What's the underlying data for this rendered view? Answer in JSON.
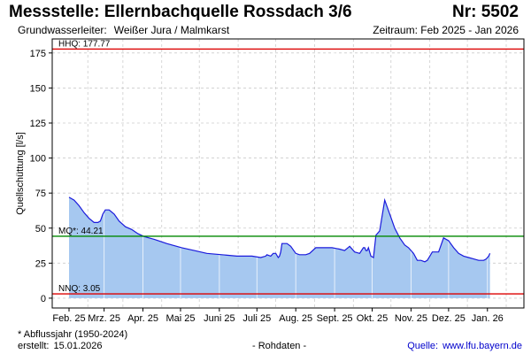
{
  "header": {
    "title": "Messstelle: Ellernbachquelle Rossdach 3/6",
    "number": "Nr: 5502",
    "aquifer_label": "Grundwasserleiter:",
    "aquifer_value": "Weißer Jura / Malmkarst",
    "period": "Zeitraum: Feb 2025 - Jan 2026"
  },
  "footer": {
    "note": "* Abflussjahr (1950-2024)",
    "created_label": "erstellt:",
    "created_date": "15.01.2026",
    "raw_data": "- Rohdaten -",
    "source_label": "Quelle:",
    "source_url": "www.lfu.bayern.de"
  },
  "colors": {
    "fill": "#a6c8f0",
    "line": "#1a1adc",
    "hhq": "#dd0000",
    "nnq": "#dd0000",
    "mq": "#008800",
    "grid": "#cccccc"
  },
  "chart_data": {
    "type": "area",
    "ylabel": "Quellschüttung [l/s]",
    "ylim": [
      -7,
      185
    ],
    "yticks": [
      0,
      25,
      50,
      75,
      100,
      125,
      150,
      175
    ],
    "xlim": [
      0,
      349
    ],
    "grid": true,
    "month_ticks": [
      {
        "label": "Feb. 25",
        "day": 0
      },
      {
        "label": "Mrz. 25",
        "day": 28
      },
      {
        "label": "Apr. 25",
        "day": 59
      },
      {
        "label": "Mai 25",
        "day": 89
      },
      {
        "label": "Juni 25",
        "day": 120
      },
      {
        "label": "Juli 25",
        "day": 150
      },
      {
        "label": "Aug. 25",
        "day": 181
      },
      {
        "label": "Sept. 25",
        "day": 212
      },
      {
        "label": "Okt. 25",
        "day": 242
      },
      {
        "label": "Nov. 25",
        "day": 273
      },
      {
        "label": "Dez. 25",
        "day": 303
      },
      {
        "label": "Jan. 26",
        "day": 334
      }
    ],
    "reference_lines": [
      {
        "name": "HHQ",
        "label": "HHQ: 177.77",
        "value": 177.77,
        "color": "#dd0000"
      },
      {
        "name": "MQ",
        "label": "MQ*: 44.21",
        "value": 44.21,
        "color": "#008800"
      },
      {
        "name": "NNQ",
        "label": "NNQ: 3.05",
        "value": 3.05,
        "color": "#dd0000"
      }
    ],
    "series": [
      {
        "x": [
          0,
          4,
          8,
          12,
          16,
          20,
          23,
          25,
          27,
          29,
          32,
          36,
          40,
          45,
          50,
          55,
          60,
          68,
          78,
          90,
          100,
          110,
          122,
          134,
          146,
          153,
          157,
          158,
          161,
          163,
          165,
          167,
          168,
          169,
          170,
          174,
          177,
          181,
          184,
          186,
          189,
          192,
          197,
          204,
          210,
          216,
          220,
          224,
          228,
          232,
          235,
          236,
          237,
          238,
          239,
          241,
          243,
          245,
          248,
          252,
          256,
          260,
          264,
          268,
          271,
          275,
          278,
          281,
          284,
          286,
          288,
          290,
          292,
          295,
          299,
          303,
          307,
          311,
          315,
          319,
          323,
          327,
          329,
          331,
          333,
          335,
          336
        ],
        "y": [
          72,
          70,
          66,
          61,
          57,
          54,
          54,
          55,
          60,
          63,
          63,
          60,
          55,
          51,
          49,
          46,
          44,
          42,
          39,
          36,
          34,
          32,
          31,
          30,
          30,
          29,
          30,
          31,
          30,
          32,
          32,
          29,
          30,
          33,
          39,
          39,
          37,
          32,
          31,
          31,
          31,
          32,
          36,
          36,
          36,
          35,
          34,
          37,
          33,
          32,
          36,
          36,
          34,
          34,
          36,
          30,
          29,
          45,
          48,
          70,
          60,
          50,
          43,
          38,
          36,
          32,
          27,
          27,
          26,
          27,
          30,
          33,
          33,
          33,
          43,
          41,
          36,
          32,
          30,
          29,
          28,
          27,
          27,
          27,
          28,
          30,
          32
        ]
      }
    ]
  }
}
